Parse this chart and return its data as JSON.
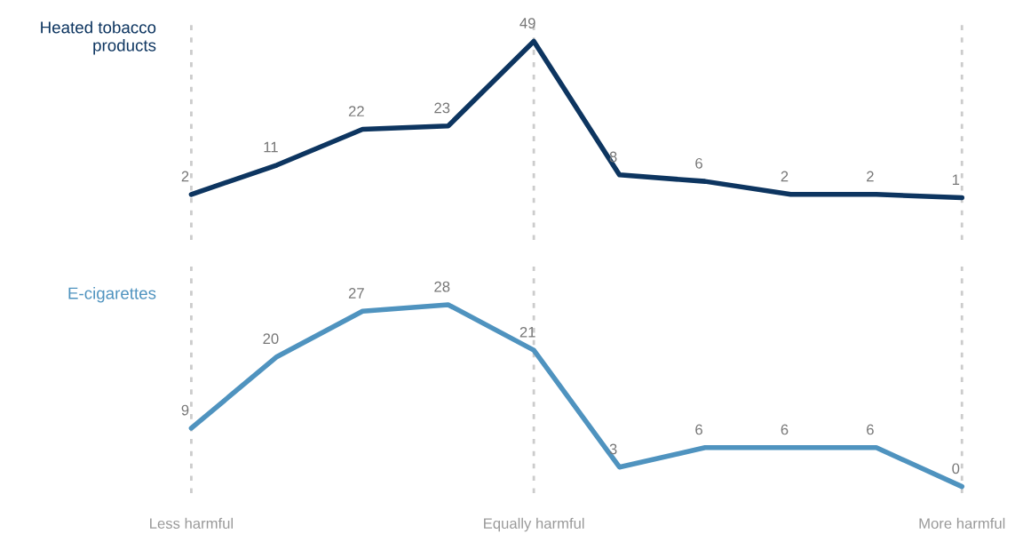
{
  "chart_data": [
    {
      "type": "line",
      "categories": [
        null,
        null,
        null,
        null,
        null,
        null,
        null,
        null,
        null,
        null
      ],
      "series": [
        {
          "name": "Heated tobacco products",
          "color": "#0d3560",
          "values": [
            2,
            11,
            22,
            23,
            49,
            8,
            6,
            2,
            2,
            1
          ]
        }
      ],
      "data_labels": true,
      "grid": "x",
      "tick_labels": false,
      "legend": false,
      "marker": "none"
    },
    {
      "type": "line",
      "categories": [
        "Less harmful",
        null,
        null,
        null,
        "Equally harmful",
        null,
        null,
        null,
        null,
        "More harmful"
      ],
      "series": [
        {
          "name": "E-cigarettes",
          "color": "#4f93bf",
          "values": [
            9,
            20,
            27,
            28,
            21,
            3,
            6,
            6,
            6,
            0
          ]
        }
      ],
      "data_labels": true,
      "grid": "x",
      "tick_labels": "x",
      "legend": false,
      "marker": "none"
    }
  ]
}
